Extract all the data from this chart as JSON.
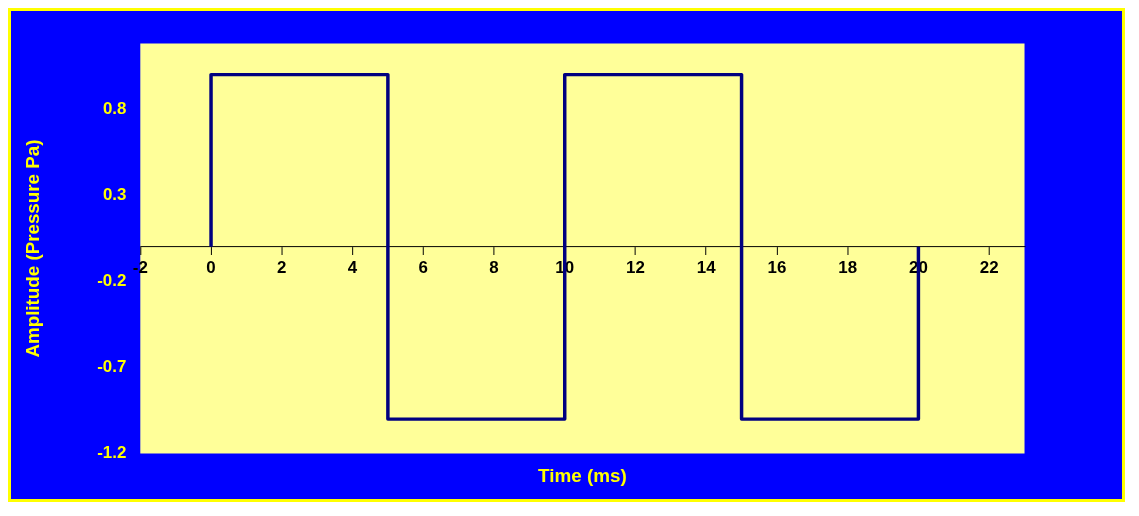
{
  "chart_data": {
    "type": "line",
    "xlabel": "Time (ms)",
    "ylabel": "Amplitude (Pressure Pa)",
    "x": [
      0,
      0,
      5,
      5,
      10,
      10,
      15,
      15,
      20,
      20
    ],
    "series": [
      {
        "color": "#000080",
        "values": [
          0,
          1,
          1,
          -1,
          -1,
          1,
          1,
          -1,
          -1,
          0
        ]
      }
    ],
    "xlim": [
      -2,
      23
    ],
    "xticks": [
      -2,
      0,
      2,
      4,
      6,
      8,
      10,
      12,
      14,
      16,
      18,
      20,
      22
    ],
    "ylim": [
      -1.2,
      1.18
    ],
    "yticks": [
      -1.2,
      -0.7,
      -0.2,
      0.3,
      0.8
    ],
    "grid": false,
    "legend": false,
    "marker": "none",
    "line_style": "solid"
  }
}
